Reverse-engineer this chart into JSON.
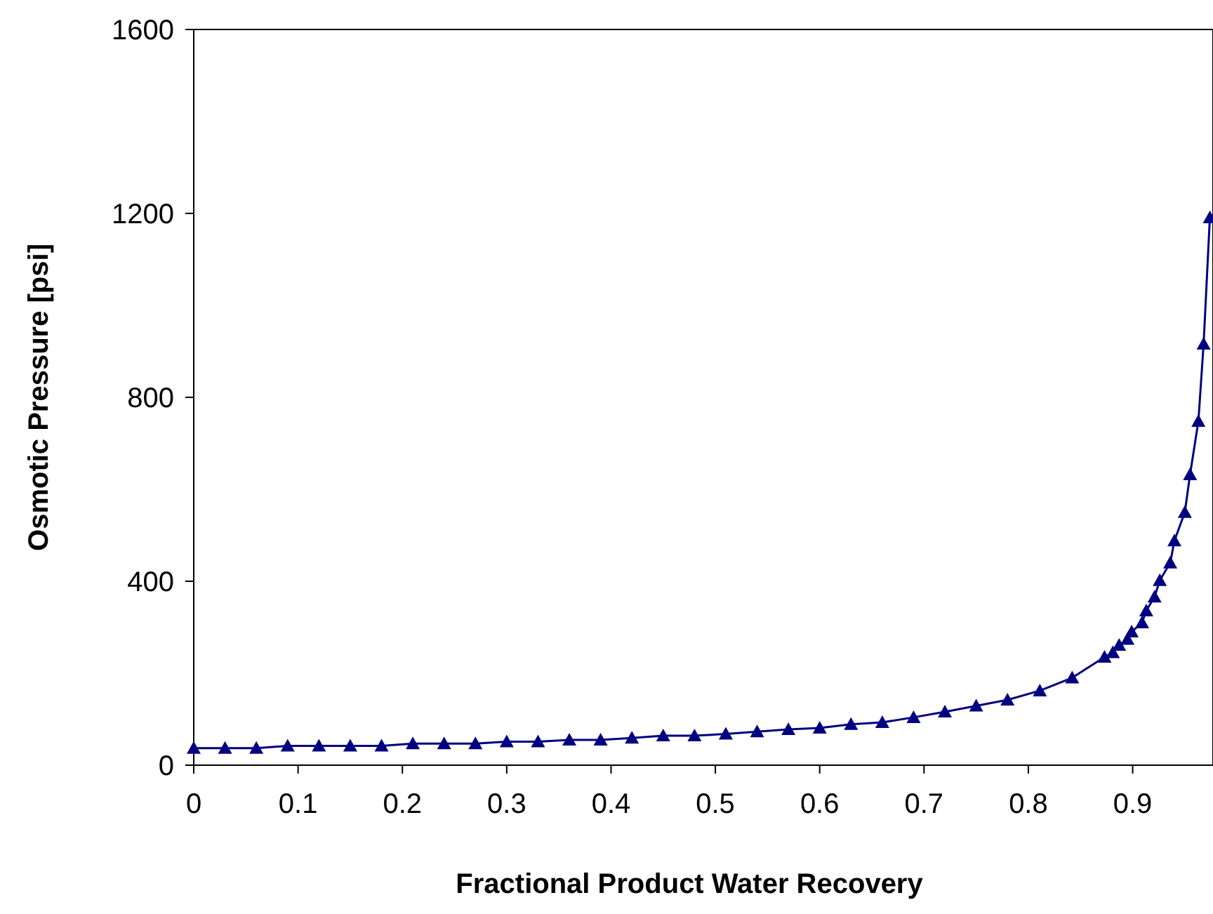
{
  "chart_data": {
    "type": "line",
    "xlabel": "Fractional Product Water Recovery",
    "ylabel": "Osmotic Pressure [psi]",
    "xlim": [
      0,
      0.977
    ],
    "ylim": [
      0,
      1600
    ],
    "xticks": [
      0,
      0.1,
      0.2,
      0.3,
      0.4,
      0.5,
      0.6,
      0.7,
      0.8,
      0.9
    ],
    "yticks": [
      0,
      400,
      800,
      1200,
      1600
    ],
    "marker": "triangle",
    "line_style": "solid",
    "series": [
      {
        "color": "#000080",
        "x": [
          0,
          0.03,
          0.06,
          0.09,
          0.12,
          0.15,
          0.18,
          0.21,
          0.24,
          0.27,
          0.3,
          0.33,
          0.36,
          0.39,
          0.42,
          0.45,
          0.48,
          0.51,
          0.54,
          0.57,
          0.6,
          0.63,
          0.66,
          0.69,
          0.72,
          0.75,
          0.78,
          0.811,
          0.842,
          0.873,
          0.881,
          0.887,
          0.895,
          0.899,
          0.909,
          0.913,
          0.921,
          0.926,
          0.936,
          0.94,
          0.95,
          0.955,
          0.963,
          0.968,
          0.974
        ],
        "values": [
          37,
          37,
          37,
          42,
          42,
          42,
          42,
          47,
          47,
          47,
          51,
          51,
          55,
          55,
          59,
          64,
          64,
          68,
          73,
          78,
          81,
          89,
          93,
          104,
          116,
          129,
          142,
          162,
          190,
          235,
          245,
          261,
          274,
          290,
          310,
          336,
          366,
          402,
          440,
          488,
          550,
          632,
          748,
          916,
          1191
        ]
      }
    ]
  }
}
